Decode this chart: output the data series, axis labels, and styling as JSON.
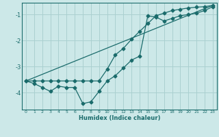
{
  "xlabel": "Humidex (Indice chaleur)",
  "bg_color": "#cce8e8",
  "line_color": "#1a6b6b",
  "grid_color": "#aad0d0",
  "xlim": [
    -0.5,
    23.5
  ],
  "ylim": [
    -4.65,
    -0.55
  ],
  "yticks": [
    -4,
    -3,
    -2,
    -1
  ],
  "xticks": [
    0,
    1,
    2,
    3,
    4,
    5,
    6,
    7,
    8,
    9,
    10,
    11,
    12,
    13,
    14,
    15,
    16,
    17,
    18,
    19,
    20,
    21,
    22,
    23
  ],
  "line1_x": [
    0,
    1,
    2,
    3,
    4,
    5,
    6,
    7,
    8,
    9,
    10,
    11,
    12,
    13,
    14,
    15,
    16,
    17,
    18,
    19,
    20,
    21,
    22,
    23
  ],
  "line1_y": [
    -3.55,
    -3.65,
    -3.8,
    -3.95,
    -3.75,
    -3.8,
    -3.8,
    -4.42,
    -4.35,
    -3.95,
    -3.55,
    -3.35,
    -3.05,
    -2.75,
    -2.6,
    -1.05,
    -1.1,
    -1.25,
    -1.15,
    -1.05,
    -1.0,
    -0.95,
    -0.85,
    -0.7
  ],
  "line2_x": [
    0,
    1,
    2,
    3,
    4,
    5,
    6,
    7,
    8,
    9,
    10,
    11,
    12,
    13,
    14,
    15,
    16,
    17,
    18,
    19,
    20,
    21,
    22,
    23
  ],
  "line2_y": [
    -3.55,
    -3.55,
    -3.55,
    -3.55,
    -3.55,
    -3.55,
    -3.55,
    -3.55,
    -3.55,
    -3.55,
    -3.1,
    -2.55,
    -2.3,
    -1.95,
    -1.65,
    -1.35,
    -1.05,
    -0.95,
    -0.85,
    -0.8,
    -0.75,
    -0.72,
    -0.7,
    -0.65
  ],
  "line3_x": [
    0,
    23
  ],
  "line3_y": [
    -3.55,
    -0.65
  ]
}
